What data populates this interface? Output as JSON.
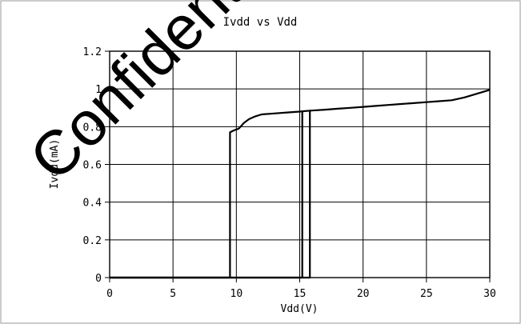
{
  "chart_data": {
    "type": "line",
    "title": "Ivdd vs Vdd",
    "xlabel": "Vdd(V)",
    "ylabel": "Ivdd(mA)",
    "xlim": [
      0,
      30
    ],
    "ylim": [
      0,
      1.2
    ],
    "x_ticks": [
      0,
      5,
      10,
      15,
      20,
      25,
      30
    ],
    "x_tick_labels": [
      "0",
      "5",
      "10",
      "15",
      "20",
      "25",
      "30"
    ],
    "y_ticks": [
      0,
      0.2,
      0.4,
      0.6,
      0.8,
      1,
      1.2
    ],
    "y_tick_labels": [
      "0",
      "0.2",
      "0.4",
      "0.6",
      "0.8",
      "1",
      "1.2"
    ],
    "grid": true,
    "legend": "none",
    "series": [
      {
        "points": [
          [
            0,
            0
          ],
          [
            9.5,
            0
          ],
          [
            9.5,
            0.77
          ],
          [
            9.8,
            0.78
          ],
          [
            10.2,
            0.79
          ],
          [
            10.6,
            0.82
          ],
          [
            11,
            0.84
          ],
          [
            11.5,
            0.855
          ],
          [
            12,
            0.865
          ],
          [
            13,
            0.87
          ],
          [
            14,
            0.875
          ],
          [
            15,
            0.88
          ],
          [
            15.8,
            0.885
          ],
          [
            17,
            0.89
          ],
          [
            18,
            0.895
          ],
          [
            19,
            0.9
          ],
          [
            20,
            0.905
          ],
          [
            21,
            0.91
          ],
          [
            22,
            0.915
          ],
          [
            23,
            0.92
          ],
          [
            24,
            0.925
          ],
          [
            25,
            0.93
          ],
          [
            26,
            0.935
          ],
          [
            27,
            0.94
          ],
          [
            28,
            0.955
          ],
          [
            29,
            0.975
          ],
          [
            30,
            0.995
          ]
        ]
      },
      {
        "points": [
          [
            0,
            0
          ],
          [
            9.5,
            0
          ],
          [
            15.2,
            0
          ],
          [
            15.2,
            0.88
          ]
        ]
      },
      {
        "points": [
          [
            0,
            0
          ],
          [
            15.8,
            0
          ],
          [
            15.8,
            0.885
          ]
        ]
      }
    ]
  },
  "watermark_text": "Confidential"
}
